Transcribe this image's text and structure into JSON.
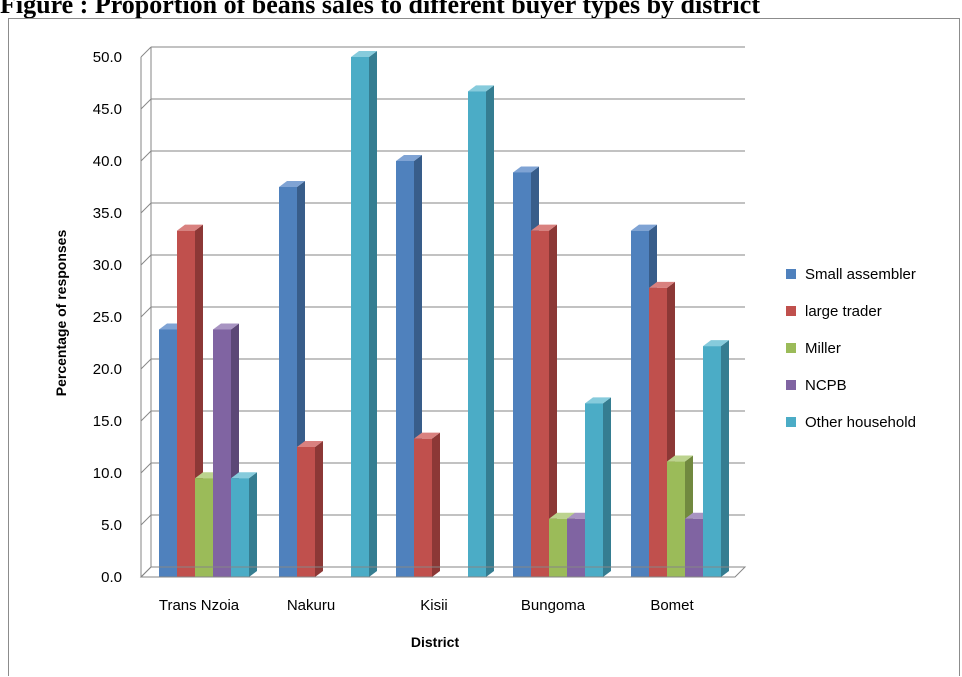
{
  "caption": "Figure : Proportion of beans sales to different buyer types by district",
  "chart_data": {
    "type": "bar",
    "title": "",
    "xlabel": "District",
    "ylabel": "Percentage of responses",
    "ylim": [
      0,
      50
    ],
    "ytick_step": 5,
    "ytick_labels": [
      "0.0",
      "5.0",
      "10.0",
      "15.0",
      "20.0",
      "25.0",
      "30.0",
      "35.0",
      "40.0",
      "45.0",
      "50.0"
    ],
    "categories": [
      "Trans Nzoia",
      "Nakuru",
      "Kisii",
      "Bungoma",
      "Bomet"
    ],
    "series": [
      {
        "name": "Small assembler",
        "color": "#4f81bd",
        "side": "#385d8a",
        "top": "#7fa3d4",
        "values": [
          23.8,
          37.5,
          40.0,
          38.9,
          33.3
        ]
      },
      {
        "name": "large trader",
        "color": "#c0504d",
        "side": "#8c3836",
        "top": "#d9817f",
        "values": [
          33.3,
          12.5,
          13.3,
          33.3,
          27.8
        ]
      },
      {
        "name": "Miller",
        "color": "#9bbb59",
        "side": "#71893f",
        "top": "#bcd38e",
        "values": [
          9.5,
          0,
          0,
          5.6,
          11.1
        ]
      },
      {
        "name": "NCPB",
        "color": "#8064a2",
        "side": "#5c4776",
        "top": "#a894c2",
        "values": [
          23.8,
          0,
          0,
          5.6,
          5.6
        ]
      },
      {
        "name": "Other household",
        "color": "#4bacc6",
        "side": "#357d91",
        "top": "#86cbdc",
        "values": [
          9.5,
          50.0,
          46.7,
          16.7,
          22.2
        ]
      }
    ],
    "grid": true,
    "legend_position": "right"
  }
}
